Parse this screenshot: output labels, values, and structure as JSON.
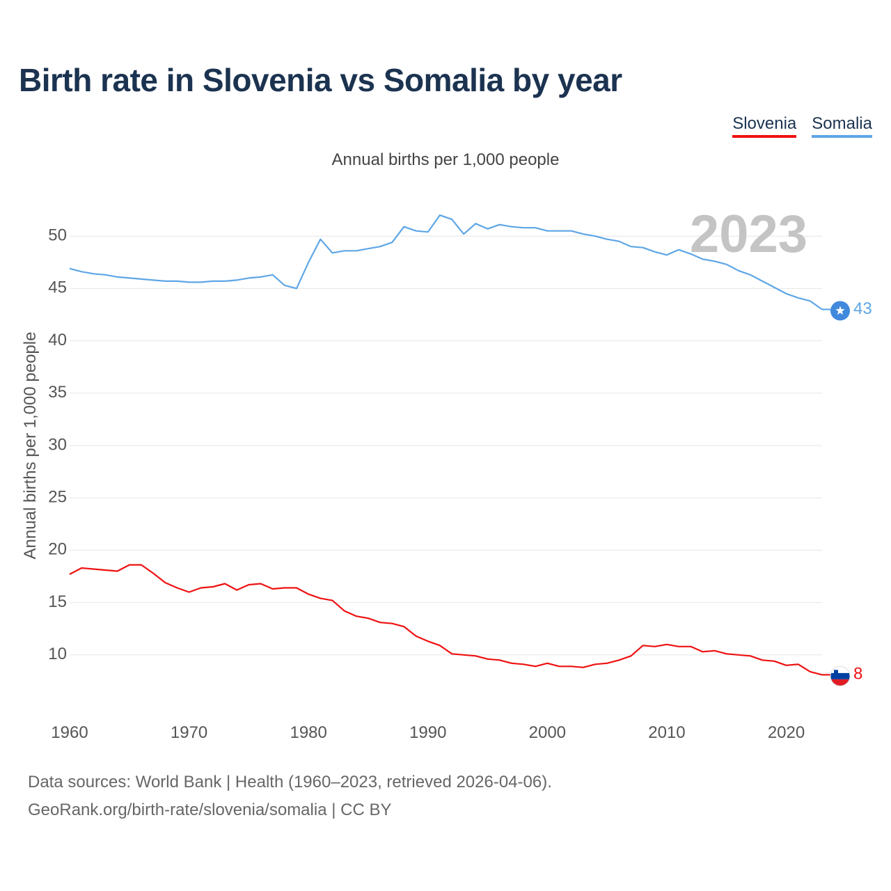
{
  "title": "Birth rate in Slovenia vs Somalia by year",
  "legend": [
    {
      "label": "Slovenia",
      "color": "#ee1111"
    },
    {
      "label": "Somalia",
      "color": "#5ea6e6"
    }
  ],
  "subtitle": "Annual births per 1,000 people",
  "year_watermark": "2023",
  "footer": {
    "line1": "Data sources: World Bank | Health (1960–2023, retrieved 2026-04-06).",
    "line2": "GeoRank.org/birth-rate/slovenia/somalia | CC BY"
  },
  "chart_data": {
    "type": "line",
    "title": "Birth rate in Slovenia vs Somalia by year",
    "ylabel": "Annual births per 1,000 people",
    "xlabel": "",
    "xlim": [
      1960,
      2023
    ],
    "ylim": [
      5,
      55
    ],
    "x_ticks": [
      "1960",
      "1970",
      "1980",
      "1990",
      "2000",
      "2010",
      "2020"
    ],
    "y_ticks": [
      "10",
      "15",
      "20",
      "25",
      "30",
      "35",
      "40",
      "45",
      "50"
    ],
    "x": [
      1960,
      1961,
      1962,
      1963,
      1964,
      1965,
      1966,
      1967,
      1968,
      1969,
      1970,
      1971,
      1972,
      1973,
      1974,
      1975,
      1976,
      1977,
      1978,
      1979,
      1980,
      1981,
      1982,
      1983,
      1984,
      1985,
      1986,
      1987,
      1988,
      1989,
      1990,
      1991,
      1992,
      1993,
      1994,
      1995,
      1996,
      1997,
      1998,
      1999,
      2000,
      2001,
      2002,
      2003,
      2004,
      2005,
      2006,
      2007,
      2008,
      2009,
      2010,
      2011,
      2012,
      2013,
      2014,
      2015,
      2016,
      2017,
      2018,
      2019,
      2020,
      2021,
      2022,
      2023
    ],
    "series": [
      {
        "name": "Slovenia",
        "color": "#ee1111",
        "end_label": "8",
        "values": [
          17.7,
          18.3,
          18.2,
          18.1,
          18.0,
          18.6,
          18.6,
          17.8,
          16.9,
          16.4,
          16.0,
          16.4,
          16.5,
          16.8,
          16.2,
          16.7,
          16.8,
          16.3,
          16.4,
          16.4,
          15.8,
          15.4,
          15.2,
          14.2,
          13.7,
          13.5,
          13.1,
          13.0,
          12.7,
          11.8,
          11.3,
          10.9,
          10.1,
          10.0,
          9.9,
          9.6,
          9.5,
          9.2,
          9.1,
          8.9,
          9.2,
          8.9,
          8.9,
          8.8,
          9.1,
          9.2,
          9.5,
          9.9,
          10.9,
          10.8,
          11.0,
          10.8,
          10.8,
          10.3,
          10.4,
          10.1,
          10.0,
          9.9,
          9.5,
          9.4,
          9.0,
          9.1,
          8.4,
          8.1
        ]
      },
      {
        "name": "Somalia",
        "color": "#5ea6e6",
        "end_label": "43",
        "values": [
          46.9,
          46.6,
          46.4,
          46.3,
          46.1,
          46.0,
          45.9,
          45.8,
          45.7,
          45.7,
          45.6,
          45.6,
          45.7,
          45.7,
          45.8,
          46.0,
          46.1,
          46.3,
          45.3,
          45.0,
          47.5,
          49.7,
          48.4,
          48.6,
          48.6,
          48.8,
          49.0,
          49.4,
          50.9,
          50.5,
          50.4,
          52.0,
          51.6,
          50.2,
          51.2,
          50.7,
          51.1,
          50.9,
          50.8,
          50.8,
          50.5,
          50.5,
          50.5,
          50.2,
          50.0,
          49.7,
          49.5,
          49.0,
          48.9,
          48.5,
          48.2,
          48.7,
          48.3,
          47.8,
          47.6,
          47.3,
          46.7,
          46.3,
          45.7,
          45.1,
          44.5,
          44.1,
          43.8,
          43.0
        ]
      }
    ]
  }
}
